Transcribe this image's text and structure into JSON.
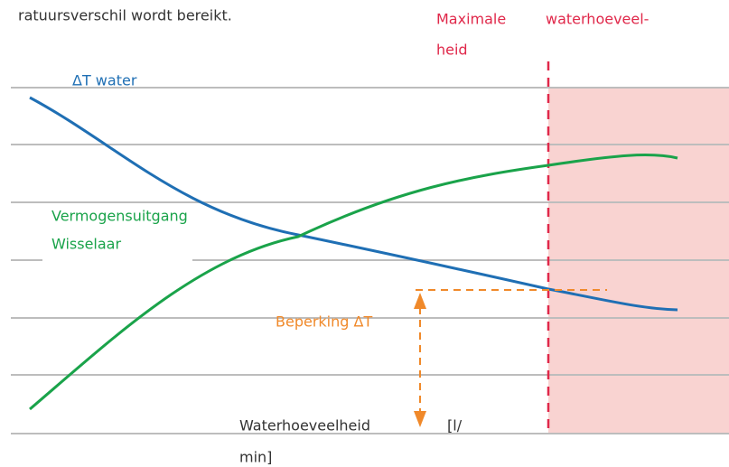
{
  "intro": "ratuursverschil wordt bereikt.",
  "max_label": {
    "line1a": "Maximale",
    "line1b": "waterhoeveel-",
    "line2": "heid"
  },
  "delta_t_label": "ΔT water",
  "power_label": {
    "line1": "Vermogensuitgang",
    "line2": "Wisselaar"
  },
  "limit_label": "Beperking ΔT",
  "x_label": {
    "line1a": "Waterhoeveelheid",
    "line1b": "[l/",
    "line2": "min]"
  }
}
